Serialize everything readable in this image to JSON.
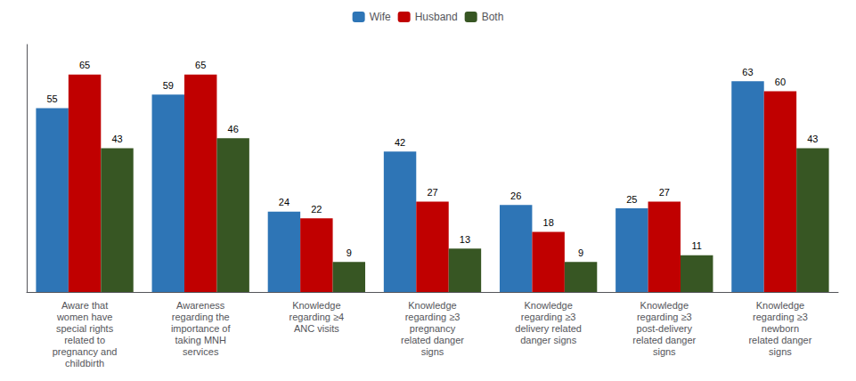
{
  "chart_data": {
    "type": "bar",
    "categories": [
      "Aware that\nwomen have\nspecial rights\nrelated to\npregnancy and\nchildbirth",
      "Awareness\nregarding the\nimportance of\ntaking MNH\nservices",
      "Knowledge\nregarding ≥4\nANC visits",
      "Knowledge\nregarding ≥3\npregnancy\nrelated danger\nsigns",
      "Knowledge\nregarding ≥3\ndelivery related\ndanger signs",
      "Knowledge\nregarding ≥3\npost-delivery\nrelated danger\nsigns",
      "Knowledge\nregarding ≥3\nnewborn\nrelated danger\nsigns"
    ],
    "series": [
      {
        "name": "Wife",
        "color": "#2E75B6",
        "values": [
          55,
          59,
          24,
          42,
          26,
          25,
          63
        ]
      },
      {
        "name": "Husband",
        "color": "#C00000",
        "values": [
          65,
          65,
          22,
          27,
          18,
          27,
          60
        ]
      },
      {
        "name": "Both",
        "color": "#375623",
        "values": [
          43,
          46,
          9,
          13,
          9,
          11,
          43
        ]
      }
    ],
    "ylim": [
      0,
      74
    ],
    "grid": false,
    "legend": "top",
    "data_labels": true,
    "tick_labels": "x"
  }
}
